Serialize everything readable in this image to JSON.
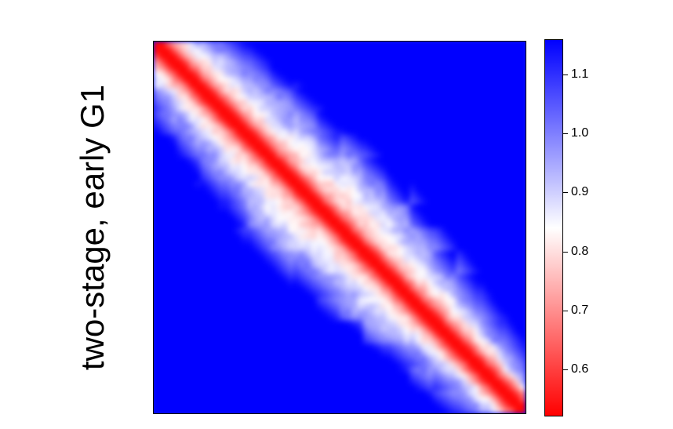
{
  "row_label": "two-stage, early G1",
  "chart_data": {
    "type": "heatmap",
    "title": "",
    "xlabel": "",
    "ylabel": "",
    "matrix_size": 64,
    "colormap": {
      "name": "bwr",
      "low_color": "#ff0000",
      "mid_color": "#ffffff",
      "high_color": "#0000ff",
      "vmin": 0.52,
      "vmax": 1.16,
      "mid_value": 0.84
    },
    "colorbar": {
      "ticks": [
        0.6,
        0.7,
        0.8,
        0.9,
        1.0,
        1.1
      ],
      "tick_labels": [
        "0.6",
        "0.7",
        "0.8",
        "0.9",
        "1.0",
        "1.1"
      ]
    },
    "structure": {
      "diagonal_value": 0.53,
      "band_half_width_fraction": [
        0.13,
        0.18,
        0.22,
        0.16,
        0.09
      ],
      "band_center_value": 0.88,
      "far_value": 1.16
    }
  }
}
